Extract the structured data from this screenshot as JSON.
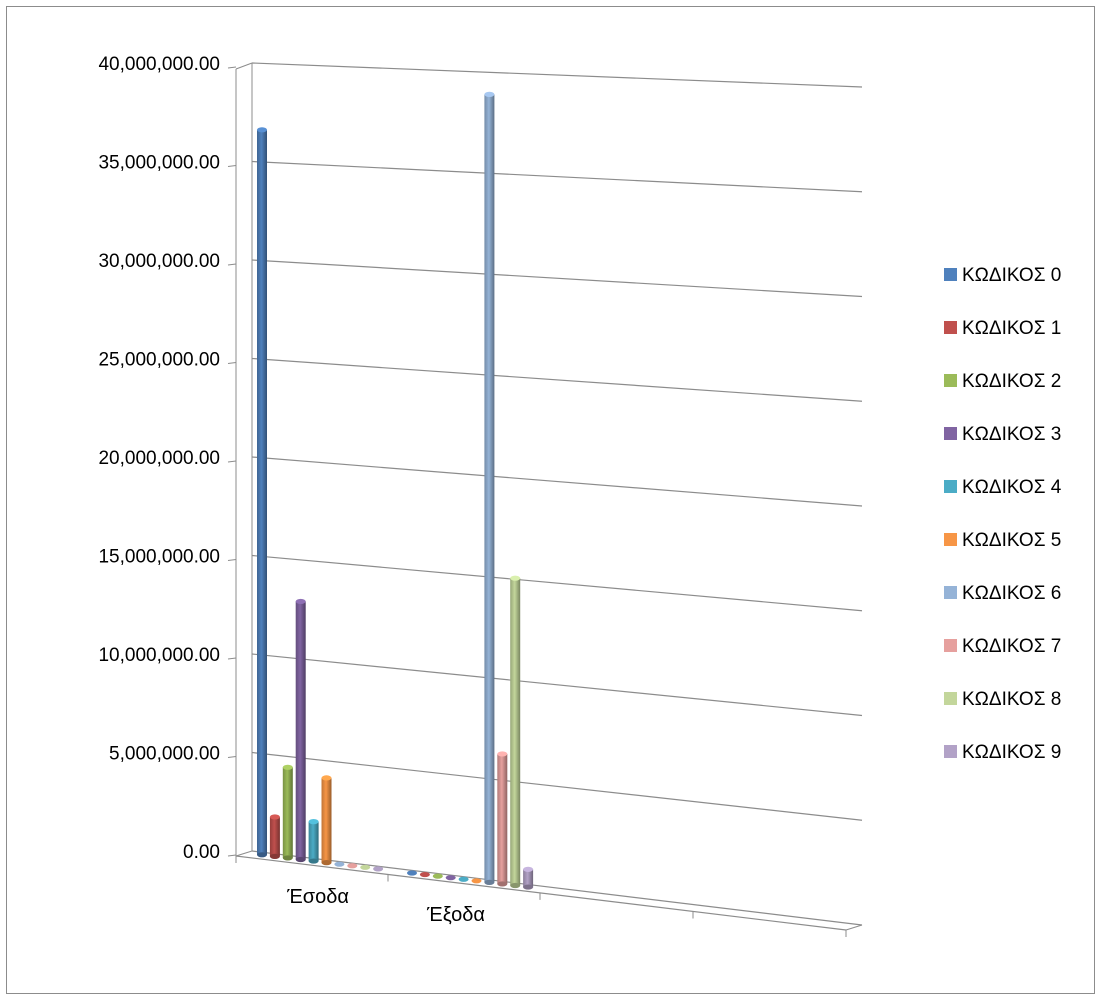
{
  "chart_data": {
    "type": "bar",
    "title": "",
    "xlabel": "",
    "ylabel": "",
    "ylim": [
      0,
      40000000
    ],
    "yticks": [
      "0.00",
      "5,000,000.00",
      "10,000,000.00",
      "15,000,000.00",
      "20,000,000.00",
      "25,000,000.00",
      "30,000,000.00",
      "35,000,000.00",
      "40,000,000.00"
    ],
    "categories": [
      "Έσοδα",
      "Έξοδα"
    ],
    "grid": true,
    "legend_position": "right",
    "series": [
      {
        "name": "ΚΩΔΙΚΟΣ 0",
        "color": "#4F81BD",
        "values": [
          36800000,
          0
        ]
      },
      {
        "name": "ΚΩΔΙΚΟΣ 1",
        "color": "#C0504D",
        "values": [
          2000000,
          0
        ]
      },
      {
        "name": "ΚΩΔΙΚΟΣ 2",
        "color": "#9BBB59",
        "values": [
          4600000,
          0
        ]
      },
      {
        "name": "ΚΩΔΙΚΟΣ 3",
        "color": "#8064A2",
        "values": [
          13100000,
          0
        ]
      },
      {
        "name": "ΚΩΔΙΚΟΣ 4",
        "color": "#4BACC6",
        "values": [
          2000000,
          0
        ]
      },
      {
        "name": "ΚΩΔΙΚΟΣ 5",
        "color": "#F79646",
        "values": [
          4300000,
          0
        ]
      },
      {
        "name": "ΚΩΔΙΚΟΣ 6",
        "color": "#95B3D7",
        "values": [
          0,
          40000000
        ]
      },
      {
        "name": "ΚΩΔΙΚΟΣ 7",
        "color": "#E6A09E",
        "values": [
          0,
          6600000
        ]
      },
      {
        "name": "ΚΩΔΙΚΟΣ 8",
        "color": "#C3D69B",
        "values": [
          0,
          15600000
        ]
      },
      {
        "name": "ΚΩΔΙΚΟΣ 9",
        "color": "#B2A2C7",
        "values": [
          0,
          900000
        ]
      }
    ]
  }
}
